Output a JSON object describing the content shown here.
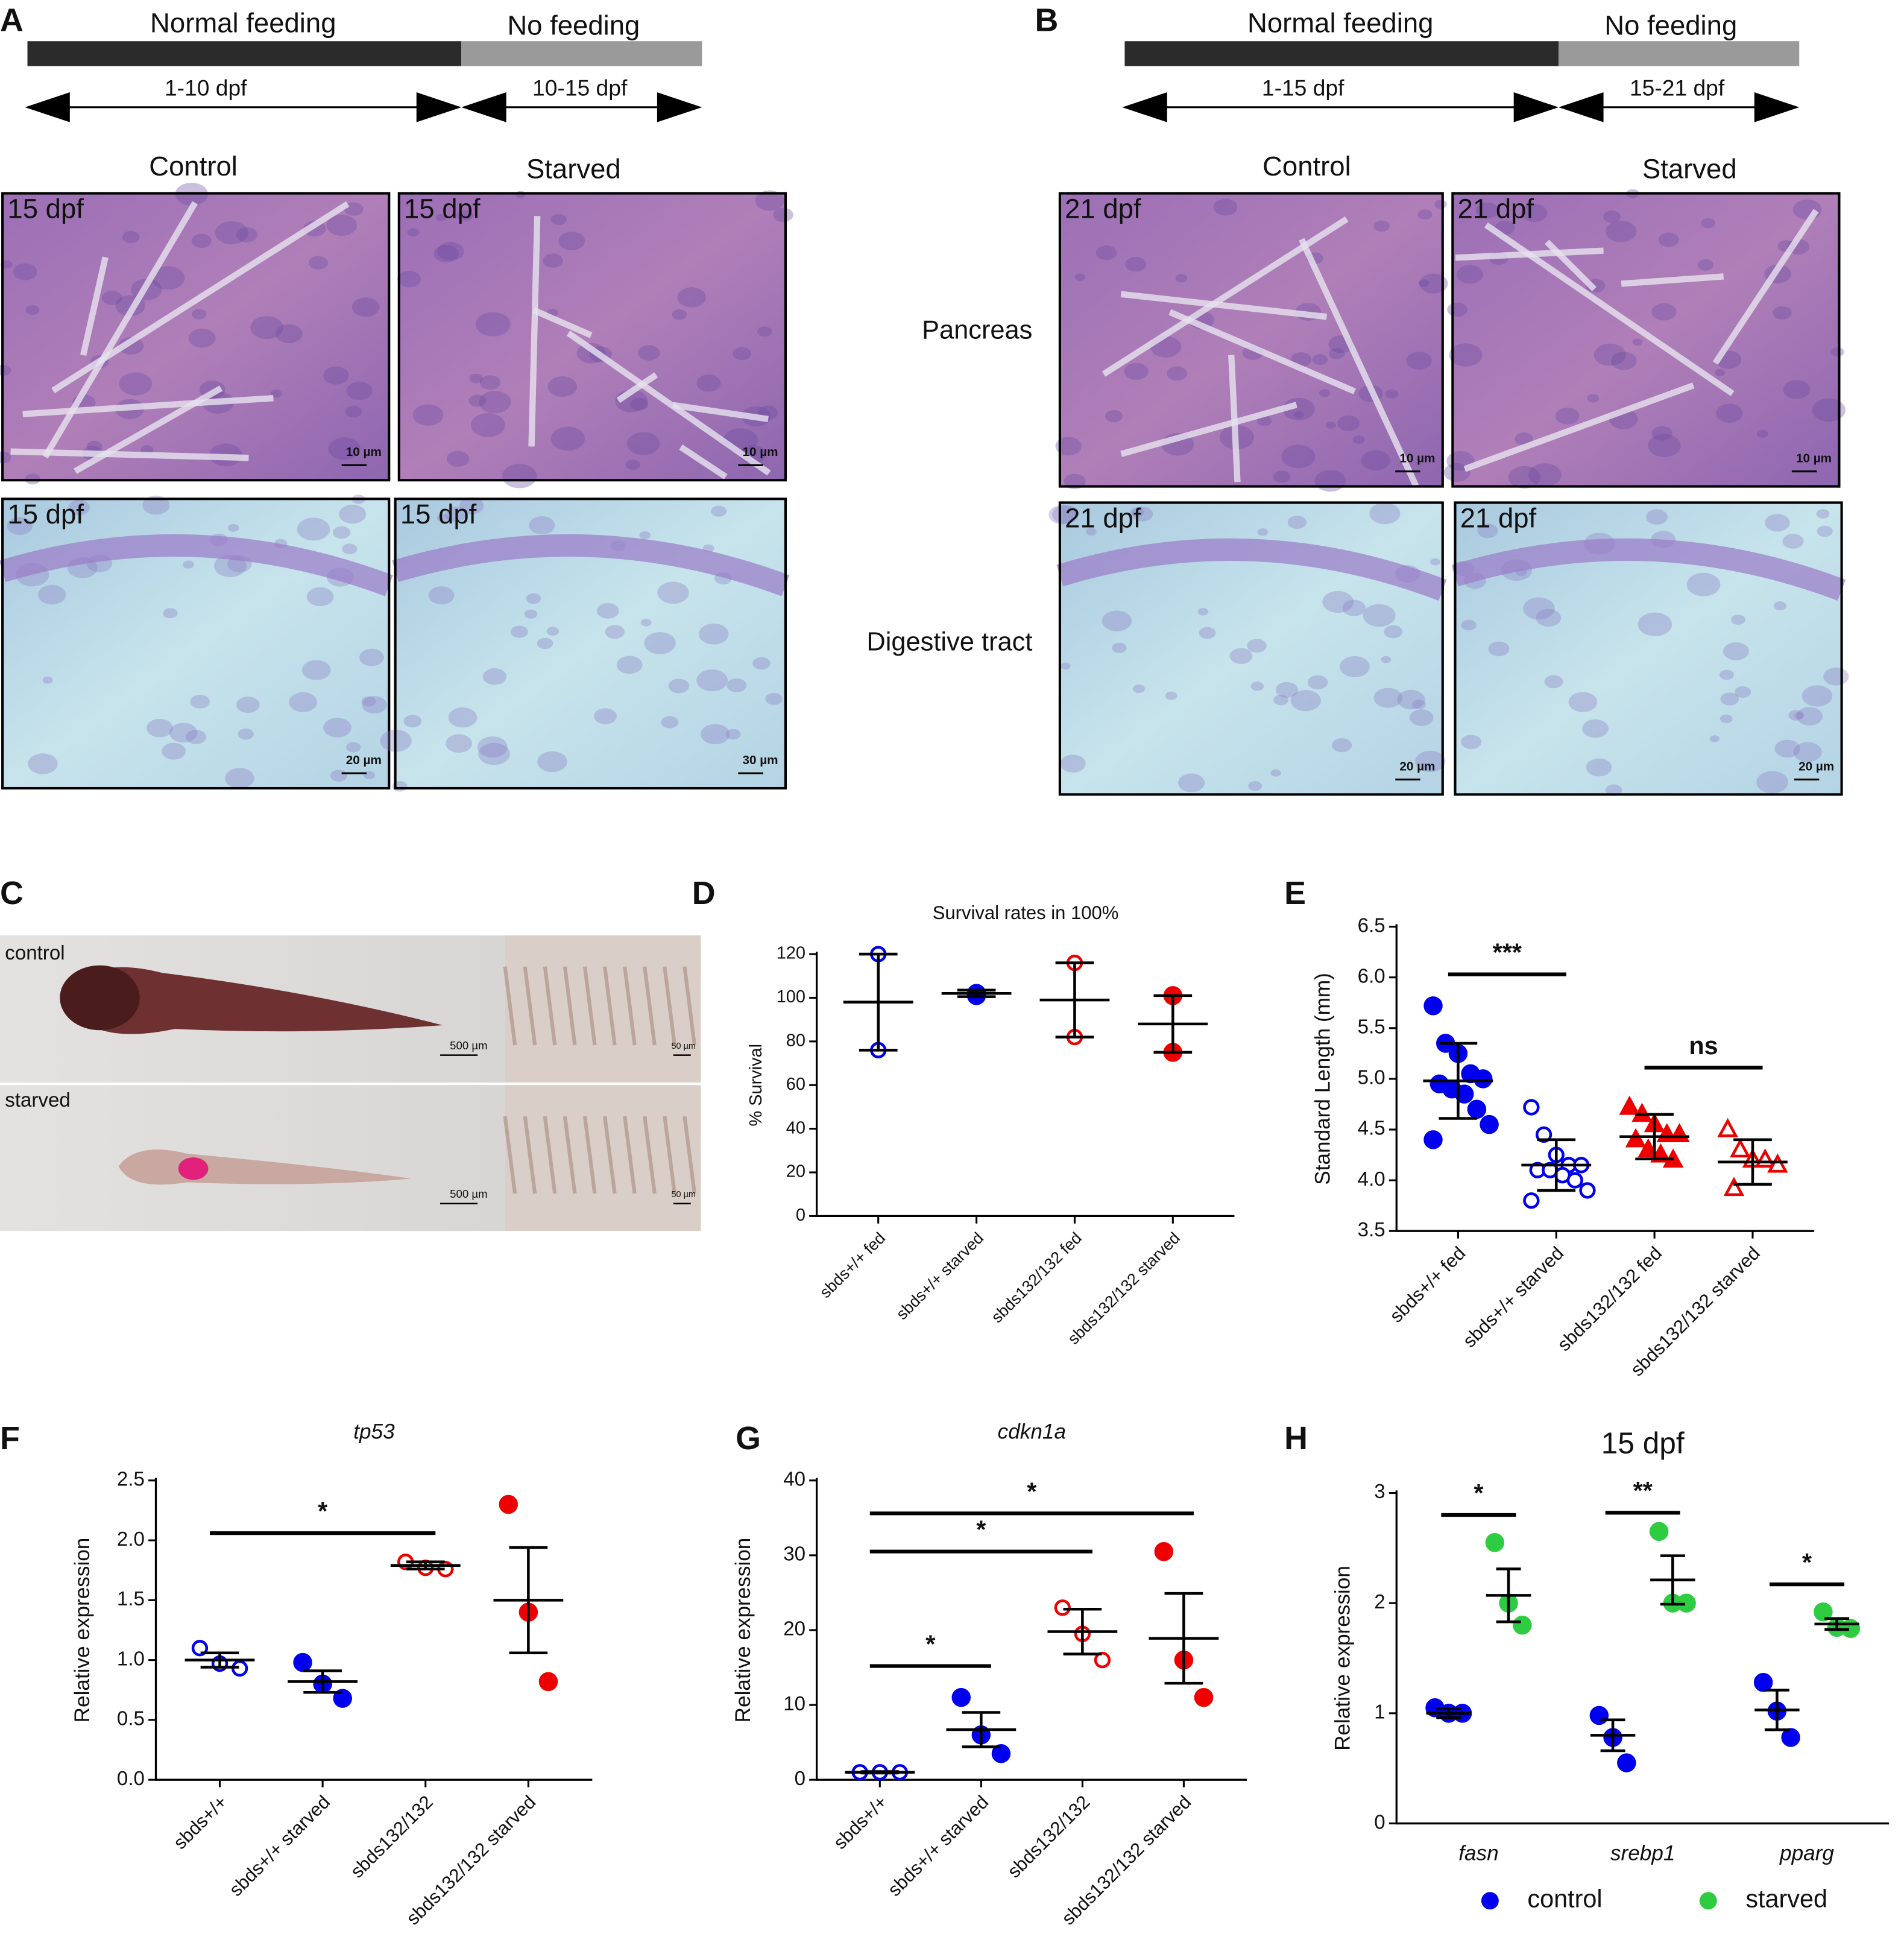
{
  "panel_labels": [
    "A",
    "B",
    "C",
    "D",
    "E",
    "F",
    "G",
    "H"
  ],
  "panel_a": {
    "timeline": {
      "phases": [
        "Normal feeding",
        "No feeding"
      ],
      "ranges": [
        "1-10 dpf",
        "10-15 dpf"
      ]
    },
    "columns": [
      "Control",
      "Starved"
    ],
    "image_labels": [
      "15 dpf",
      "15 dpf",
      "15 dpf",
      "15 dpf"
    ],
    "scale_bars": [
      "10 µm",
      "10 µm",
      "20 µm",
      "30 µm"
    ]
  },
  "panel_b": {
    "timeline": {
      "phases": [
        "Normal feeding",
        "No feeding"
      ],
      "ranges": [
        "1-15 dpf",
        "15-21 dpf"
      ]
    },
    "columns": [
      "Control",
      "Starved"
    ],
    "rows": [
      "Pancreas",
      "Digestive tract"
    ],
    "image_labels": [
      "21 dpf",
      "21 dpf",
      "21 dpf",
      "21 dpf"
    ],
    "scale_bars": [
      "10 µm",
      "10 µm",
      "20 µm",
      "20 µm"
    ]
  },
  "panel_c": {
    "rows": [
      "control",
      "starved"
    ],
    "scale_bars": [
      "500 µm",
      "50 µm",
      "500 µm",
      "50 µm"
    ]
  },
  "chart_data": [
    {
      "type": "dotplot",
      "title": "Survival rates in 100%",
      "y_label": "% Survival",
      "categories": [
        "sbds+/+ fed",
        "sbds+/+ starved",
        "sbds132/132 fed",
        "sbds132/132 starved"
      ],
      "colors": [
        "#0000ee",
        "#0000ee",
        "#ee0000",
        "#ee0000"
      ],
      "markers": [
        "open-circle",
        "filled-circle",
        "open-circle",
        "filled-circle"
      ],
      "points": [
        [
          120,
          76
        ],
        [
          101,
          102
        ],
        [
          116,
          82
        ],
        [
          101,
          75
        ]
      ],
      "means": [
        98,
        102,
        99,
        88
      ],
      "errors": [
        22,
        1.5,
        17,
        13
      ],
      "ylim": [
        0,
        120
      ],
      "yticks": [
        0,
        20,
        40,
        60,
        80,
        100,
        120
      ]
    },
    {
      "type": "dotplot",
      "y_label": "Standard Length (mm)",
      "categories": [
        "sbds+/+ fed",
        "sbds+/+ starved",
        "sbds132/132 fed",
        "sbds132/132 starved"
      ],
      "colors": [
        "#0000ee",
        "#0000ee",
        "#ee0000",
        "#ee0000"
      ],
      "markers": [
        "filled-circle",
        "open-circle",
        "filled-triangle",
        "open-triangle"
      ],
      "points": [
        [
          5.72,
          5.35,
          5.25,
          5.05,
          5.0,
          4.95,
          4.9,
          4.85,
          4.7,
          4.55,
          4.4
        ],
        [
          4.72,
          4.45,
          4.25,
          4.15,
          4.15,
          4.1,
          4.1,
          4.05,
          4.0,
          3.9,
          3.8
        ],
        [
          4.72,
          4.65,
          4.55,
          4.45,
          4.45,
          4.4,
          4.3,
          4.25,
          4.2
        ],
        [
          4.5,
          4.3,
          4.2,
          4.2,
          4.15,
          3.92
        ]
      ],
      "means": [
        4.98,
        4.15,
        4.43,
        4.18
      ],
      "errors": [
        0.37,
        0.25,
        0.22,
        0.22
      ],
      "annotations": [
        {
          "text": "***",
          "x1": 0,
          "x2": 1,
          "y": 6.03
        },
        {
          "text": "ns",
          "x1": 2,
          "x2": 3,
          "y": 5.11
        }
      ],
      "ylim": [
        3.5,
        6.5
      ],
      "yticks": [
        3.5,
        {
          "value": 4,
          "label": "4.0"
        },
        4.5,
        {
          "value": 5,
          "label": "5.0"
        },
        5.5,
        {
          "value": 6,
          "label": "6.0"
        },
        6.5
      ]
    },
    {
      "type": "dotplot",
      "title": "tp53",
      "title_italic": true,
      "y_label": "Relative expression",
      "categories": [
        "sbds+/+",
        "sbds+/+ starved",
        "sbds132/132",
        "sbds132/132 starved"
      ],
      "colors": [
        "#0000ee",
        "#0000ee",
        "#ee0000",
        "#ee0000"
      ],
      "markers": [
        "open-circle",
        "filled-circle",
        "open-circle",
        "filled-circle"
      ],
      "points": [
        [
          1.1,
          0.97,
          0.93
        ],
        [
          0.98,
          0.8,
          0.68
        ],
        [
          1.82,
          1.77,
          1.76
        ],
        [
          2.3,
          1.4,
          0.82
        ]
      ],
      "means": [
        1.0,
        0.82,
        1.79,
        1.5
      ],
      "errors": [
        0.06,
        0.09,
        0.03,
        0.44
      ],
      "annotations": [
        {
          "text": "*",
          "x1": 0,
          "x2": 2,
          "y": 2.06
        }
      ],
      "ylim": [
        0,
        2.5
      ],
      "yticks": [
        {
          "value": 0,
          "label": "0.0"
        },
        0.5,
        {
          "value": 1,
          "label": "1.0"
        },
        1.5,
        {
          "value": 2,
          "label": "2.0"
        },
        2.5
      ]
    },
    {
      "type": "dotplot",
      "title": "cdkn1a",
      "title_italic": true,
      "y_label": "Relative expression",
      "categories": [
        "sbds+/+",
        "sbds+/+ starved",
        "sbds132/132",
        "sbds132/132 starved"
      ],
      "colors": [
        "#0000ee",
        "#0000ee",
        "#ee0000",
        "#ee0000"
      ],
      "markers": [
        "open-circle",
        "filled-circle",
        "open-circle",
        "filled-circle"
      ],
      "points": [
        [
          1,
          1,
          1
        ],
        [
          11,
          6,
          3.5
        ],
        [
          23,
          19.5,
          16
        ],
        [
          30.5,
          16,
          11
        ]
      ],
      "means": [
        1,
        6.7,
        19.8,
        18.9
      ],
      "errors": [
        0.1,
        2.3,
        3,
        6
      ],
      "annotations": [
        {
          "text": "*",
          "x1": 0,
          "x2": 1,
          "y": 15.2
        },
        {
          "text": "*",
          "x1": 0,
          "x2": 2,
          "y": 30.5
        },
        {
          "text": "*",
          "x1": 0,
          "x2": 3,
          "y": 35.6
        }
      ],
      "ylim": [
        0,
        40
      ],
      "yticks": [
        0,
        10,
        20,
        30,
        40
      ]
    },
    {
      "type": "grouped-dotplot",
      "title": "15 dpf",
      "y_label": "Relative expression",
      "category_italic": true,
      "categories": [
        "fasn",
        "srebp1",
        "pparg"
      ],
      "series": [
        {
          "name": "control",
          "color": "#0000ee",
          "points": [
            [
              1.05,
              1.0,
              1.0
            ],
            [
              0.98,
              0.78,
              0.55
            ],
            [
              1.28,
              1.02,
              0.78
            ]
          ],
          "means": [
            1.0,
            0.8,
            1.03
          ],
          "errors": [
            0.04,
            0.14,
            0.18
          ]
        },
        {
          "name": "starved",
          "color": "#2ecc40",
          "points": [
            [
              2.55,
              2.0,
              1.8
            ],
            [
              2.65,
              2.0,
              2.0
            ],
            [
              1.92,
              1.78,
              1.77
            ]
          ],
          "means": [
            2.07,
            2.21,
            1.81
          ],
          "errors": [
            0.24,
            0.22,
            0.05
          ]
        }
      ],
      "annotations": [
        {
          "text": "*",
          "category": 0,
          "y": 2.8
        },
        {
          "text": "**",
          "category": 1,
          "y": 2.82
        },
        {
          "text": "*",
          "category": 2,
          "y": 2.17
        }
      ],
      "legend": "bottom",
      "ylim": [
        0,
        3
      ],
      "yticks": [
        0,
        1,
        2,
        3
      ]
    }
  ]
}
